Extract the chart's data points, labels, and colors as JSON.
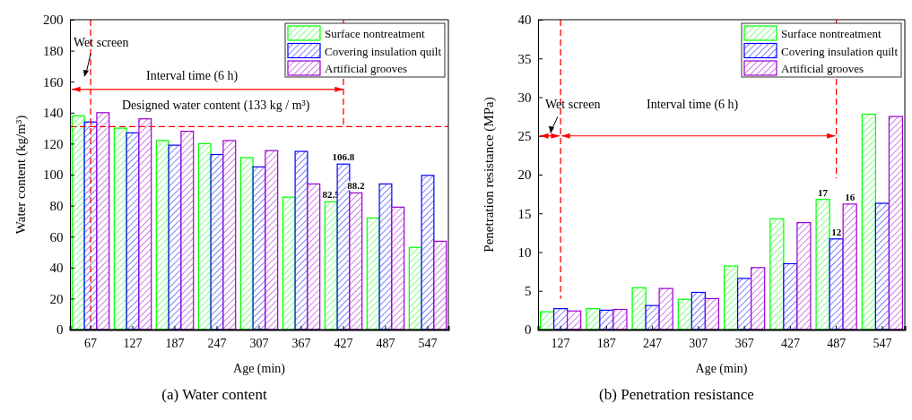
{
  "chart_data": [
    {
      "type": "bar",
      "xlabel": "Age (min)",
      "ylabel": "Water content (kg/m³)",
      "categories": [
        "67",
        "127",
        "187",
        "247",
        "307",
        "367",
        "427",
        "487",
        "547"
      ],
      "ylim": [
        0,
        200
      ],
      "yticks": [
        0,
        20,
        40,
        60,
        80,
        100,
        120,
        140,
        160,
        180,
        200
      ],
      "legend": "top right",
      "grid": false,
      "series": [
        {
          "name": "Surface nontreatment",
          "color": "#00ff00",
          "values": [
            138,
            130,
            122,
            120,
            111,
            85.5,
            82.5,
            72,
            53
          ],
          "value_labels": [
            null,
            null,
            null,
            null,
            null,
            null,
            "82.5",
            null,
            null
          ]
        },
        {
          "name": "Covering insulation quilt",
          "color": "#0000ff",
          "values": [
            134,
            127,
            119,
            113,
            105,
            115,
            106.8,
            94,
            99.5
          ],
          "value_labels": [
            null,
            null,
            null,
            null,
            null,
            null,
            "106.8",
            null,
            null
          ]
        },
        {
          "name": "Artificial grooves",
          "color": "#9900cc",
          "values": [
            140,
            136,
            128,
            122,
            115.5,
            94,
            88.2,
            79,
            57
          ],
          "value_labels": [
            null,
            null,
            null,
            null,
            null,
            null,
            "88.2",
            null,
            null
          ]
        }
      ],
      "ref_lines": [
        {
          "axis": "y",
          "value": 131,
          "color": "#ff0000",
          "line_style": "dashed"
        },
        {
          "axis": "x",
          "value": "67",
          "color": "#ff0000",
          "line_style": "dashed"
        },
        {
          "axis": "x",
          "value": "427",
          "color": "#ff0000",
          "line_style": "dashed"
        }
      ],
      "annotations": [
        "Wet screen",
        "Interval time (6 h)",
        "Designed water content (133 kg / m³)",
        "(a) Water content"
      ]
    },
    {
      "type": "bar",
      "xlabel": "Age (min)",
      "ylabel": "Penetration resistance (MPa)",
      "categories": [
        "127",
        "187",
        "247",
        "307",
        "367",
        "427",
        "487",
        "547"
      ],
      "ylim": [
        0,
        40
      ],
      "yticks": [
        0,
        5,
        10,
        15,
        20,
        25,
        30,
        35,
        40
      ],
      "legend": "top right",
      "grid": false,
      "series": [
        {
          "name": "Surface nontreatment",
          "color": "#00ff00",
          "values": [
            2.3,
            2.7,
            5.4,
            3.9,
            8.2,
            14.3,
            16.8,
            27.8
          ],
          "value_labels": [
            null,
            null,
            null,
            null,
            null,
            null,
            "17",
            null
          ]
        },
        {
          "name": "Covering insulation quilt",
          "color": "#0000ff",
          "values": [
            2.7,
            2.5,
            3.1,
            4.8,
            6.6,
            8.5,
            11.7,
            16.3
          ],
          "value_labels": [
            null,
            null,
            null,
            null,
            null,
            null,
            "12",
            null
          ]
        },
        {
          "name": "Artificial grooves",
          "color": "#9900cc",
          "values": [
            2.4,
            2.6,
            5.3,
            4.0,
            8.0,
            13.8,
            16.2,
            27.5
          ],
          "value_labels": [
            null,
            null,
            null,
            null,
            null,
            null,
            "16",
            null
          ]
        }
      ],
      "ref_lines": [
        {
          "axis": "x",
          "value": "127",
          "color": "#ff0000",
          "line_style": "dashed"
        },
        {
          "axis": "x",
          "value": "487",
          "color": "#ff0000",
          "line_style": "dashed"
        }
      ],
      "annotations": [
        "Wet screen",
        "Interval time (6 h)",
        "(b) Penetration resistance"
      ]
    }
  ]
}
